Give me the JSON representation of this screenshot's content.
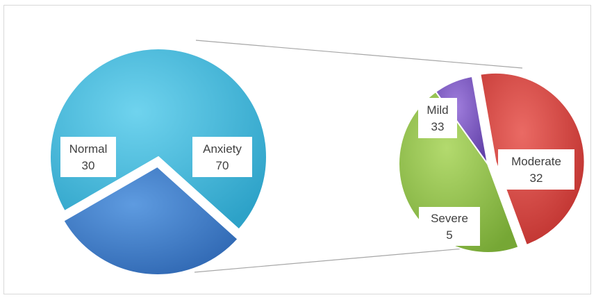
{
  "chart_data": {
    "type": "pie",
    "subtype": "pie-of-pie",
    "primary": {
      "categories": [
        "Anxiety",
        "Normal"
      ],
      "values": [
        70,
        30
      ],
      "colors": [
        "#3FB7D9",
        "#3D7CC9"
      ],
      "exploded": [
        "Normal"
      ]
    },
    "secondary": {
      "categories": [
        "Mild",
        "Moderate",
        "Severe"
      ],
      "values": [
        33,
        32,
        5
      ],
      "colors": [
        "#D84541",
        "#93C24A",
        "#7E57C2"
      ],
      "exploded": [
        "Mild"
      ]
    },
    "connector_color": "#a6a6a6",
    "legend": "none",
    "grid": false
  }
}
